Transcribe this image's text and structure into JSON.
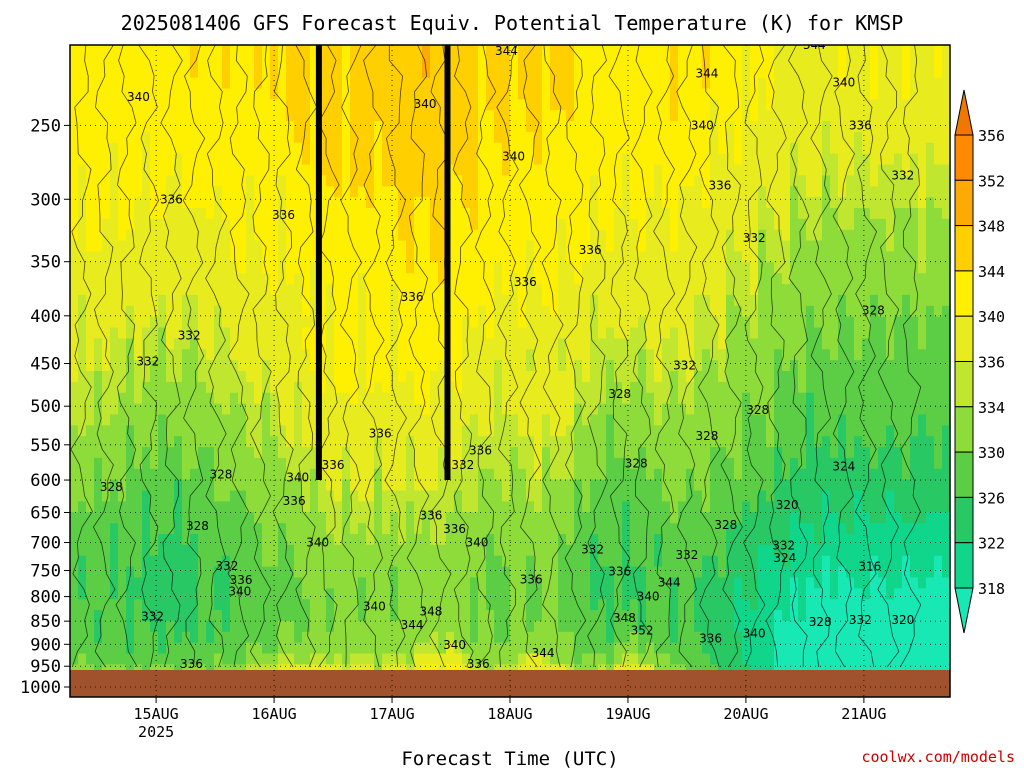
{
  "chart_data": {
    "type": "heatmap",
    "title": "2025081406 GFS Forecast Equiv. Potential Temperature (K) for KMSP",
    "xlabel": "Forecast Time (UTC)",
    "ylabel": "",
    "credit": "coolwx.com/models",
    "x_ticks": [
      {
        "value": 15,
        "label": "15AUG",
        "sublabel": "2025"
      },
      {
        "value": 16,
        "label": "16AUG",
        "sublabel": ""
      },
      {
        "value": 17,
        "label": "17AUG",
        "sublabel": ""
      },
      {
        "value": 18,
        "label": "18AUG",
        "sublabel": ""
      },
      {
        "value": 19,
        "label": "19AUG",
        "sublabel": ""
      },
      {
        "value": 20,
        "label": "20AUG",
        "sublabel": ""
      },
      {
        "value": 21,
        "label": "21AUG",
        "sublabel": ""
      }
    ],
    "xlim": [
      14.27,
      21.73
    ],
    "y_ticks": [
      250,
      300,
      350,
      400,
      450,
      500,
      550,
      600,
      650,
      700,
      750,
      800,
      850,
      900,
      950,
      1000
    ],
    "ylim": [
      1025,
      205
    ],
    "y_scale": "log",
    "grid": true,
    "colorbar": {
      "ticks": [
        318,
        322,
        326,
        330,
        334,
        336,
        340,
        344,
        348,
        352,
        356
      ],
      "colors": [
        "#18e8b4",
        "#10d68c",
        "#28c864",
        "#5cce46",
        "#8edc3a",
        "#c0e630",
        "#e8ec1e",
        "#ffef00",
        "#ffcf00",
        "#ffaa00",
        "#ff8a00",
        "#f07800"
      ]
    },
    "contour_labels": [
      {
        "t": 14.85,
        "p": 233,
        "v": 340
      },
      {
        "t": 15.13,
        "p": 300,
        "v": 336
      },
      {
        "t": 15.28,
        "p": 420,
        "v": 332
      },
      {
        "t": 14.93,
        "p": 448,
        "v": 332
      },
      {
        "t": 14.62,
        "p": 610,
        "v": 328
      },
      {
        "t": 15.55,
        "p": 592,
        "v": 328
      },
      {
        "t": 15.35,
        "p": 672,
        "v": 328
      },
      {
        "t": 15.6,
        "p": 742,
        "v": 332
      },
      {
        "t": 15.72,
        "p": 768,
        "v": 336
      },
      {
        "t": 15.71,
        "p": 790,
        "v": 340
      },
      {
        "t": 14.97,
        "p": 840,
        "v": 332
      },
      {
        "t": 15.3,
        "p": 945,
        "v": 336
      },
      {
        "t": 16.08,
        "p": 312,
        "v": 336
      },
      {
        "t": 16.2,
        "p": 596,
        "v": 340
      },
      {
        "t": 16.17,
        "p": 632,
        "v": 336
      },
      {
        "t": 16.37,
        "p": 700,
        "v": 340
      },
      {
        "t": 16.5,
        "p": 578,
        "v": 336
      },
      {
        "t": 17.17,
        "p": 382,
        "v": 336
      },
      {
        "t": 16.9,
        "p": 535,
        "v": 336
      },
      {
        "t": 17.28,
        "p": 237,
        "v": 340
      },
      {
        "t": 17.33,
        "p": 655,
        "v": 336
      },
      {
        "t": 16.85,
        "p": 820,
        "v": 340
      },
      {
        "t": 17.33,
        "p": 830,
        "v": 348
      },
      {
        "t": 17.17,
        "p": 858,
        "v": 344
      },
      {
        "t": 17.53,
        "p": 677,
        "v": 336
      },
      {
        "t": 17.6,
        "p": 578,
        "v": 332
      },
      {
        "t": 17.75,
        "p": 558,
        "v": 336
      },
      {
        "t": 17.72,
        "p": 700,
        "v": 340
      },
      {
        "t": 17.53,
        "p": 902,
        "v": 340
      },
      {
        "t": 17.73,
        "p": 945,
        "v": 336
      },
      {
        "t": 17.97,
        "p": 208,
        "v": 344
      },
      {
        "t": 18.03,
        "p": 270,
        "v": 340
      },
      {
        "t": 18.13,
        "p": 368,
        "v": 336
      },
      {
        "t": 18.18,
        "p": 767,
        "v": 336
      },
      {
        "t": 18.28,
        "p": 920,
        "v": 344
      },
      {
        "t": 18.68,
        "p": 340,
        "v": 336
      },
      {
        "t": 18.93,
        "p": 485,
        "v": 328
      },
      {
        "t": 19.07,
        "p": 576,
        "v": 328
      },
      {
        "t": 18.7,
        "p": 712,
        "v": 332
      },
      {
        "t": 18.93,
        "p": 752,
        "v": 336
      },
      {
        "t": 19.48,
        "p": 452,
        "v": 332
      },
      {
        "t": 19.5,
        "p": 722,
        "v": 332
      },
      {
        "t": 19.35,
        "p": 773,
        "v": 344
      },
      {
        "t": 19.17,
        "p": 800,
        "v": 340
      },
      {
        "t": 18.97,
        "p": 843,
        "v": 348
      },
      {
        "t": 19.12,
        "p": 870,
        "v": 352
      },
      {
        "t": 19.67,
        "p": 220,
        "v": 344
      },
      {
        "t": 19.63,
        "p": 250,
        "v": 340
      },
      {
        "t": 19.78,
        "p": 290,
        "v": 336
      },
      {
        "t": 20.07,
        "p": 330,
        "v": 332
      },
      {
        "t": 19.67,
        "p": 538,
        "v": 328
      },
      {
        "t": 19.83,
        "p": 670,
        "v": 328
      },
      {
        "t": 20.1,
        "p": 505,
        "v": 328
      },
      {
        "t": 19.7,
        "p": 887,
        "v": 336
      },
      {
        "t": 20.07,
        "p": 876,
        "v": 340
      },
      {
        "t": 20.35,
        "p": 638,
        "v": 320
      },
      {
        "t": 20.32,
        "p": 705,
        "v": 332
      },
      {
        "t": 20.33,
        "p": 727,
        "v": 324
      },
      {
        "t": 20.63,
        "p": 852,
        "v": 328
      },
      {
        "t": 20.58,
        "p": 205,
        "v": 344
      },
      {
        "t": 20.83,
        "p": 225,
        "v": 340
      },
      {
        "t": 20.97,
        "p": 250,
        "v": 336
      },
      {
        "t": 21.33,
        "p": 283,
        "v": 332
      },
      {
        "t": 21.08,
        "p": 395,
        "v": 328
      },
      {
        "t": 20.83,
        "p": 580,
        "v": 324
      },
      {
        "t": 21.05,
        "p": 743,
        "v": 316
      },
      {
        "t": 21.33,
        "p": 848,
        "v": 320
      },
      {
        "t": 20.97,
        "p": 848,
        "v": 332
      }
    ]
  }
}
